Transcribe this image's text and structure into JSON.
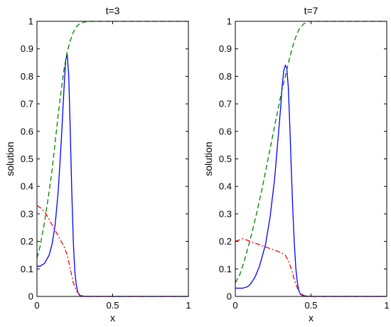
{
  "chart_data": [
    {
      "type": "line",
      "title": "t=3",
      "xlabel": "x",
      "ylabel": "solution",
      "xlim": [
        0,
        1
      ],
      "ylim": [
        0,
        1
      ],
      "x_ticks": [
        "0",
        "0.5",
        "1"
      ],
      "y_ticks": [
        "0",
        "0.1",
        "0.2",
        "0.3",
        "0.4",
        "0.5",
        "0.6",
        "0.7",
        "0.8",
        "0.9",
        "1"
      ],
      "grid": false,
      "series": [
        {
          "style": "solid",
          "color": "#0000ff",
          "x": [
            0,
            0.02,
            0.05,
            0.08,
            0.1,
            0.12,
            0.14,
            0.16,
            0.18,
            0.19,
            0.2,
            0.21,
            0.22,
            0.23,
            0.24,
            0.25,
            0.26,
            0.27,
            0.28,
            0.29,
            0.3,
            0.32,
            0.35,
            0.4,
            0.5,
            0.6,
            0.7,
            0.8,
            0.9,
            1.0
          ],
          "y": [
            0.11,
            0.11,
            0.12,
            0.15,
            0.19,
            0.26,
            0.38,
            0.56,
            0.77,
            0.86,
            0.88,
            0.8,
            0.6,
            0.38,
            0.2,
            0.09,
            0.04,
            0.015,
            0.005,
            0.002,
            0.0,
            0.0,
            0.0,
            0.0,
            0.0,
            0.0,
            0.0,
            0.0,
            0.0,
            0.0
          ]
        },
        {
          "style": "dashed",
          "color": "#008000",
          "x": [
            0,
            0.02,
            0.05,
            0.08,
            0.1,
            0.12,
            0.14,
            0.16,
            0.18,
            0.2,
            0.22,
            0.24,
            0.26,
            0.28,
            0.3,
            0.33,
            0.36,
            0.4,
            0.45,
            0.5,
            0.6,
            0.7,
            0.8,
            0.9,
            1.0
          ],
          "y": [
            0.14,
            0.18,
            0.27,
            0.38,
            0.46,
            0.56,
            0.66,
            0.75,
            0.83,
            0.89,
            0.93,
            0.96,
            0.98,
            0.99,
            0.995,
            1.0,
            1.0,
            1.0,
            1.0,
            1.0,
            1.0,
            1.0,
            1.0,
            1.0,
            1.0
          ]
        },
        {
          "style": "dashdot",
          "color": "#ff0000",
          "x": [
            0,
            0.03,
            0.06,
            0.09,
            0.12,
            0.15,
            0.18,
            0.2,
            0.22,
            0.24,
            0.26,
            0.28,
            0.3,
            0.32,
            0.35,
            0.4,
            0.5,
            0.6,
            0.7,
            0.8,
            0.9,
            1.0
          ],
          "y": [
            0.33,
            0.32,
            0.3,
            0.27,
            0.24,
            0.21,
            0.18,
            0.15,
            0.1,
            0.05,
            0.02,
            0.008,
            0.003,
            0.001,
            0.0,
            0.0,
            0.0,
            0.0,
            0.0,
            0.0,
            0.0,
            0.0
          ]
        }
      ]
    },
    {
      "type": "line",
      "title": "t=7",
      "xlabel": "x",
      "ylabel": "solution",
      "xlim": [
        0,
        1
      ],
      "ylim": [
        0,
        1
      ],
      "x_ticks": [
        "0",
        "0.5",
        "1"
      ],
      "y_ticks": [
        "0",
        "0.1",
        "0.2",
        "0.3",
        "0.4",
        "0.5",
        "0.6",
        "0.7",
        "0.8",
        "0.9",
        "1"
      ],
      "grid": false,
      "series": [
        {
          "style": "solid",
          "color": "#0000ff",
          "x": [
            0,
            0.05,
            0.08,
            0.1,
            0.13,
            0.16,
            0.2,
            0.23,
            0.26,
            0.28,
            0.3,
            0.31,
            0.32,
            0.33,
            0.34,
            0.35,
            0.36,
            0.37,
            0.38,
            0.39,
            0.4,
            0.41,
            0.42,
            0.43,
            0.45,
            0.5,
            0.6,
            0.7,
            0.8,
            0.9,
            1.0
          ],
          "y": [
            0.03,
            0.03,
            0.035,
            0.045,
            0.07,
            0.11,
            0.19,
            0.29,
            0.43,
            0.56,
            0.69,
            0.77,
            0.82,
            0.84,
            0.83,
            0.76,
            0.62,
            0.46,
            0.31,
            0.19,
            0.1,
            0.05,
            0.02,
            0.008,
            0.002,
            0.0,
            0.0,
            0.0,
            0.0,
            0.0,
            0.0
          ]
        },
        {
          "style": "dashed",
          "color": "#008000",
          "x": [
            0,
            0.03,
            0.06,
            0.1,
            0.14,
            0.18,
            0.22,
            0.26,
            0.3,
            0.33,
            0.36,
            0.39,
            0.42,
            0.45,
            0.48,
            0.5,
            0.55,
            0.6,
            0.7,
            0.8,
            0.9,
            1.0
          ],
          "y": [
            0.05,
            0.08,
            0.13,
            0.21,
            0.3,
            0.4,
            0.51,
            0.62,
            0.73,
            0.8,
            0.87,
            0.93,
            0.97,
            0.99,
            1.0,
            1.0,
            1.0,
            1.0,
            1.0,
            1.0,
            1.0,
            1.0
          ]
        },
        {
          "style": "dashdot",
          "color": "#ff0000",
          "x": [
            0,
            0.05,
            0.1,
            0.15,
            0.2,
            0.25,
            0.3,
            0.33,
            0.35,
            0.37,
            0.39,
            0.41,
            0.43,
            0.45,
            0.47,
            0.5,
            0.6,
            0.7,
            0.8,
            0.9,
            1.0
          ],
          "y": [
            0.2,
            0.21,
            0.2,
            0.19,
            0.18,
            0.17,
            0.16,
            0.15,
            0.13,
            0.1,
            0.06,
            0.03,
            0.012,
            0.004,
            0.001,
            0.0,
            0.0,
            0.0,
            0.0,
            0.0,
            0.0
          ]
        }
      ]
    }
  ]
}
